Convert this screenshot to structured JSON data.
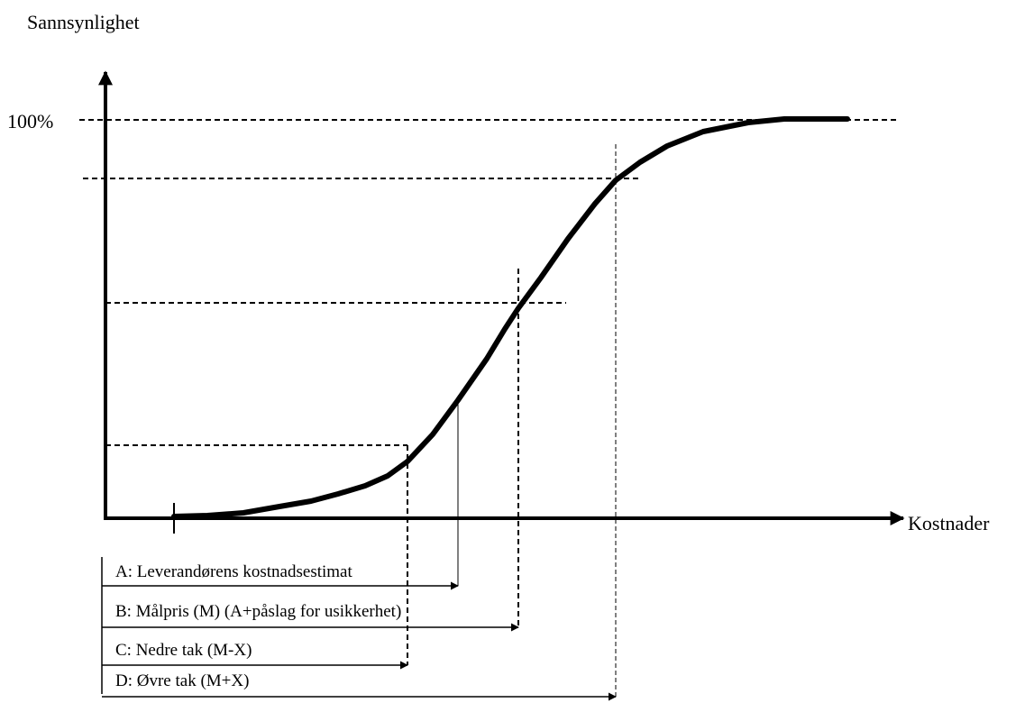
{
  "y_axis_label": "Sannsynlighet",
  "x_axis_label": "Kostnader",
  "y_tick_100": "100%",
  "legend_items": [
    "A: Leverandørens kostnadsestimat",
    "B: Målpris (M) (A+påslag for usikkerhet)",
    "C: Nedre tak (M-X)",
    "D: Øvre tak (M+X)"
  ],
  "colors": {
    "ink": "#000000",
    "background": "#ffffff"
  }
}
